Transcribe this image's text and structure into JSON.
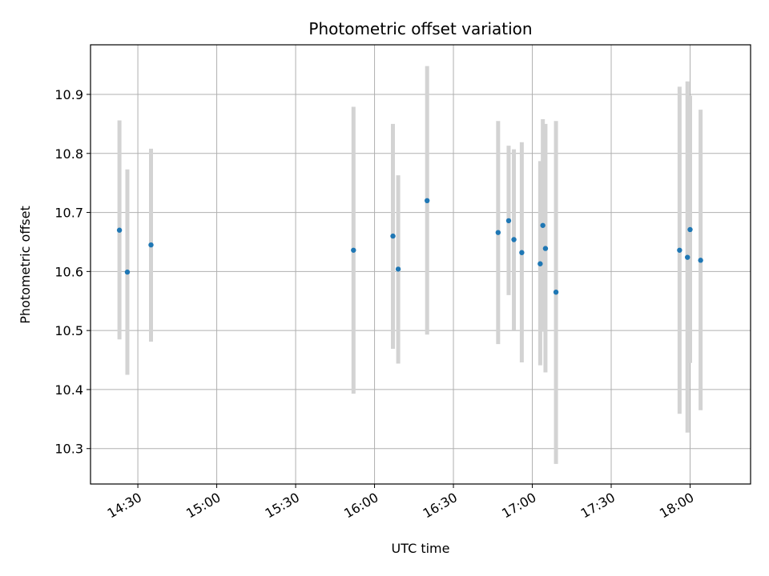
{
  "chart_data": {
    "type": "scatter",
    "title": "Photometric offset variation",
    "xlabel": "UTC time",
    "ylabel": "Photometric offset",
    "grid": true,
    "x_axis": {
      "min": "14:12",
      "max": "18:23",
      "ticks": [
        "14:30",
        "15:00",
        "15:30",
        "16:00",
        "16:30",
        "17:00",
        "17:30",
        "18:00"
      ]
    },
    "y_axis": {
      "min": 10.24,
      "max": 10.984,
      "ticks": [
        10.3,
        10.4,
        10.5,
        10.6,
        10.7,
        10.8,
        10.9
      ]
    },
    "colors": {
      "point": "#1f77b4",
      "errorbar": "#d3d3d3",
      "grid": "#b0b0b0"
    },
    "points": [
      {
        "x": "14:23",
        "y": 10.67,
        "err_low": 10.485,
        "err_high": 10.856
      },
      {
        "x": "14:26",
        "y": 10.599,
        "err_low": 10.425,
        "err_high": 10.773
      },
      {
        "x": "14:35",
        "y": 10.645,
        "err_low": 10.481,
        "err_high": 10.808
      },
      {
        "x": "15:52",
        "y": 10.636,
        "err_low": 10.393,
        "err_high": 10.879
      },
      {
        "x": "16:07",
        "y": 10.66,
        "err_low": 10.469,
        "err_high": 10.85
      },
      {
        "x": "16:09",
        "y": 10.604,
        "err_low": 10.444,
        "err_high": 10.763
      },
      {
        "x": "16:20",
        "y": 10.72,
        "err_low": 10.493,
        "err_high": 10.948
      },
      {
        "x": "16:47",
        "y": 10.666,
        "err_low": 10.477,
        "err_high": 10.855
      },
      {
        "x": "16:51",
        "y": 10.686,
        "err_low": 10.56,
        "err_high": 10.813
      },
      {
        "x": "16:53",
        "y": 10.654,
        "err_low": 10.501,
        "err_high": 10.807
      },
      {
        "x": "16:56",
        "y": 10.632,
        "err_low": 10.446,
        "err_high": 10.819
      },
      {
        "x": "17:03",
        "y": 10.613,
        "err_low": 10.441,
        "err_high": 10.787
      },
      {
        "x": "17:04",
        "y": 10.678,
        "err_low": 10.498,
        "err_high": 10.858
      },
      {
        "x": "17:05",
        "y": 10.639,
        "err_low": 10.429,
        "err_high": 10.85
      },
      {
        "x": "17:09",
        "y": 10.565,
        "err_low": 10.274,
        "err_high": 10.855
      },
      {
        "x": "17:56",
        "y": 10.636,
        "err_low": 10.359,
        "err_high": 10.913
      },
      {
        "x": "17:59",
        "y": 10.624,
        "err_low": 10.327,
        "err_high": 10.922
      },
      {
        "x": "18:00",
        "y": 10.671,
        "err_low": 10.445,
        "err_high": 10.898
      },
      {
        "x": "18:04",
        "y": 10.619,
        "err_low": 10.365,
        "err_high": 10.874
      }
    ]
  }
}
